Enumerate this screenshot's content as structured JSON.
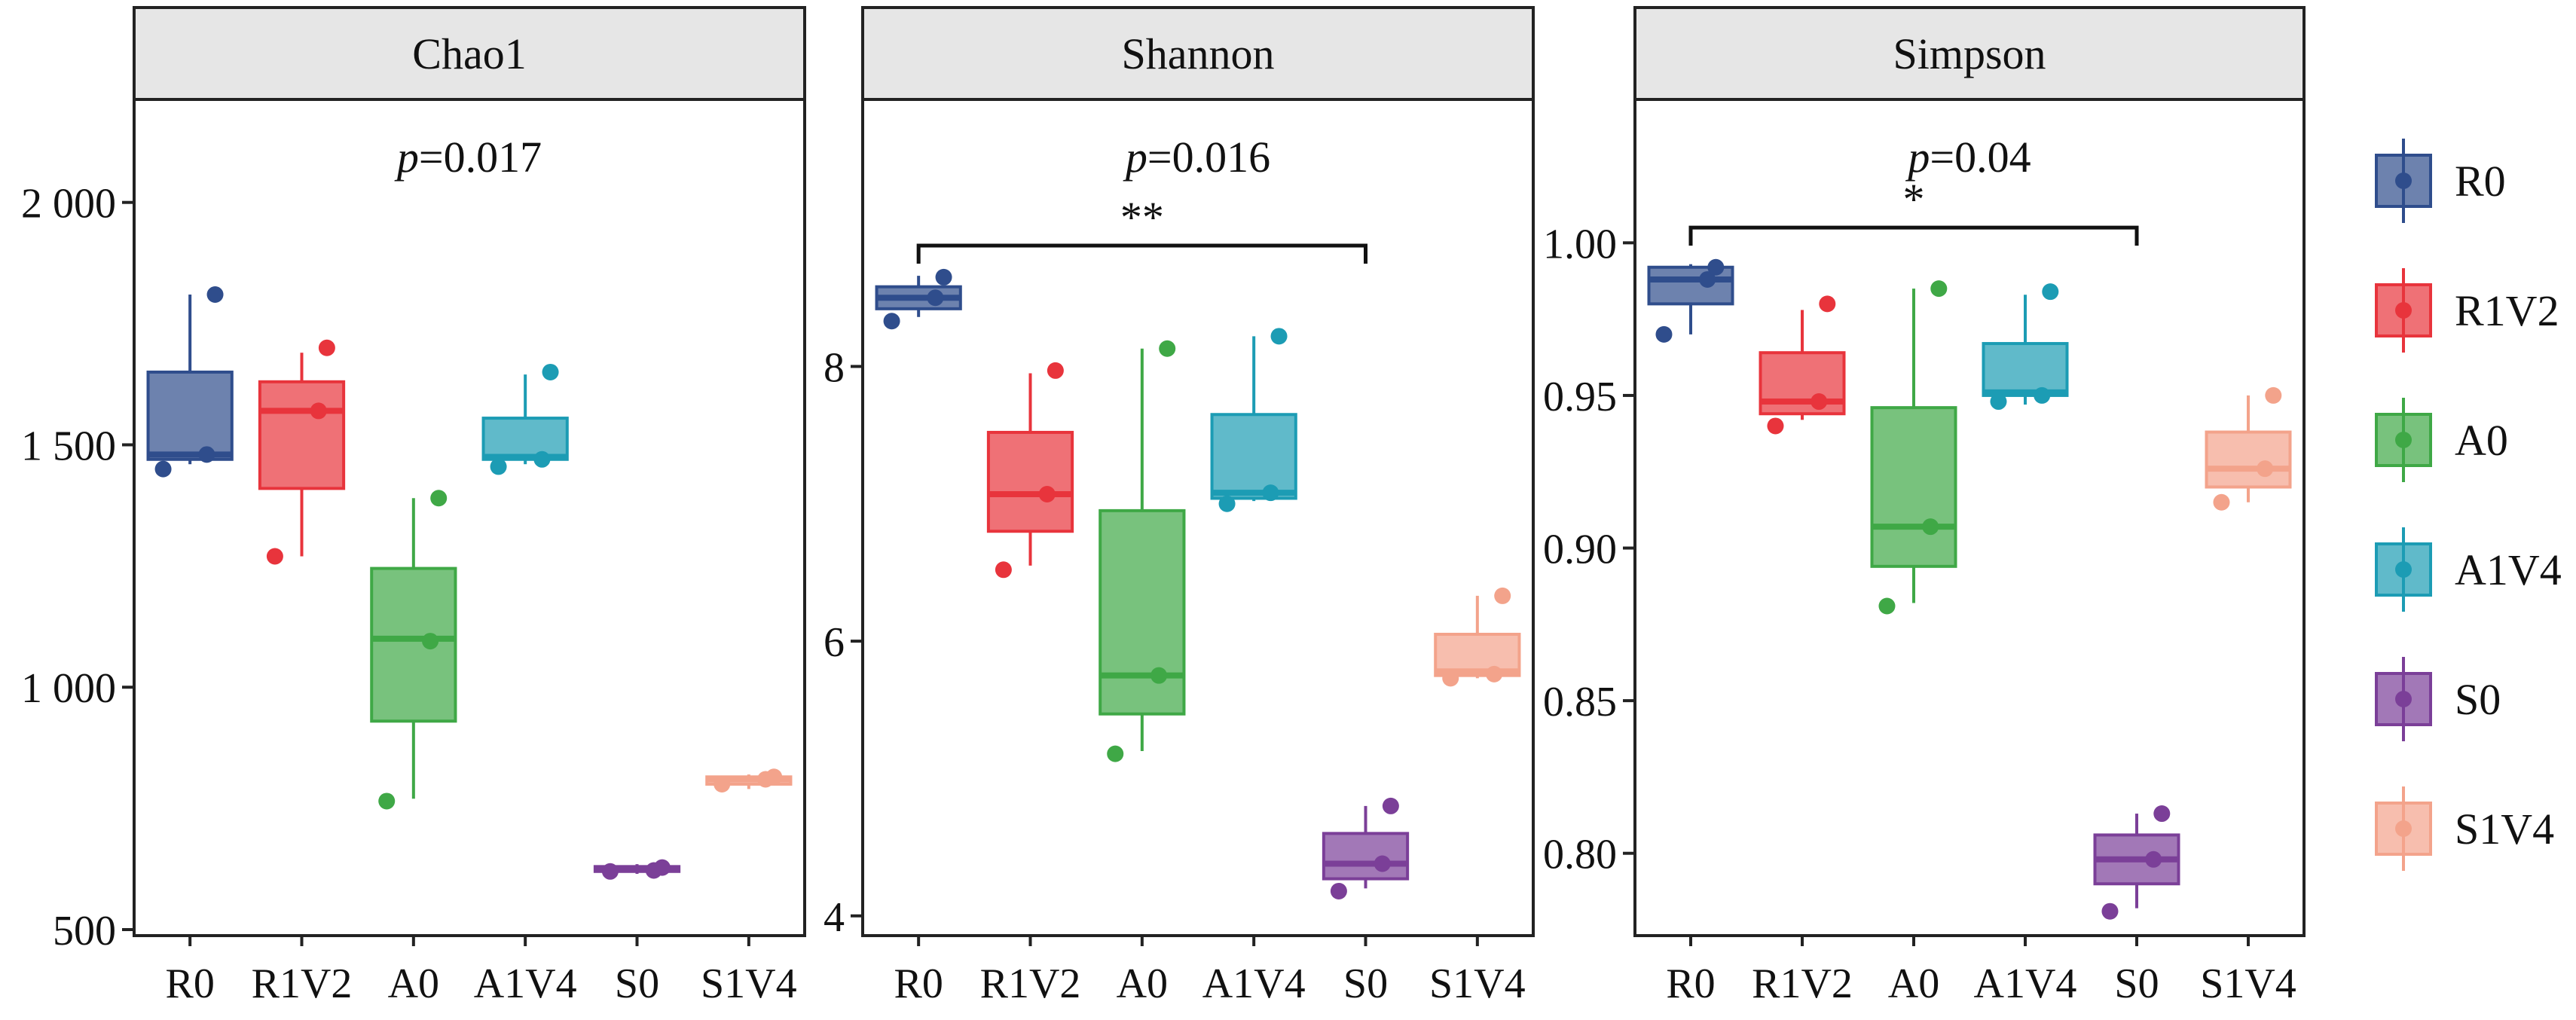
{
  "chart_data": {
    "type": "box",
    "categories": [
      "R0",
      "R1V2",
      "A0",
      "A1V4",
      "S0",
      "S1V4"
    ],
    "colors": {
      "R0": "#2f4d8c",
      "R1V2": "#e8343c",
      "A0": "#3fa846",
      "A1V4": "#1c9cb4",
      "S0": "#7b3f98",
      "S1V4": "#f3a38b"
    },
    "legend": {
      "position": "right",
      "entries": [
        "R0",
        "R1V2",
        "A0",
        "A1V4",
        "S0",
        "S1V4"
      ]
    },
    "panels": [
      {
        "title": "Chao1",
        "p_prefix": "p",
        "p_value": "=0.017",
        "ylim": [
          500,
          2200
        ],
        "yticks": [
          500,
          1000,
          1500,
          2000
        ],
        "ytick_labels": [
          "500",
          "1 000",
          "1 500",
          "2 000"
        ],
        "boxes": [
          {
            "group": "R0",
            "min": 1460,
            "q1": 1470,
            "median": 1480,
            "q3": 1650,
            "max": 1810,
            "points": [
              1450,
              1480,
              1810
            ]
          },
          {
            "group": "R1V2",
            "min": 1270,
            "q1": 1410,
            "median": 1570,
            "q3": 1630,
            "max": 1690,
            "points": [
              1270,
              1570,
              1700
            ]
          },
          {
            "group": "A0",
            "min": 770,
            "q1": 930,
            "median": 1100,
            "q3": 1245,
            "max": 1390,
            "points": [
              765,
              1095,
              1390
            ]
          },
          {
            "group": "A1V4",
            "min": 1460,
            "q1": 1470,
            "median": 1475,
            "q3": 1555,
            "max": 1645,
            "points": [
              1455,
              1470,
              1650
            ]
          },
          {
            "group": "S0",
            "min": 615,
            "q1": 620,
            "median": 625,
            "q3": 630,
            "max": 635,
            "points": [
              620,
              622,
              628
            ]
          },
          {
            "group": "S1V4",
            "min": 790,
            "q1": 800,
            "median": 810,
            "q3": 815,
            "max": 820,
            "points": [
              800,
              810,
              815
            ]
          }
        ],
        "bracket": null
      },
      {
        "title": "Shannon",
        "p_prefix": "p",
        "p_value": "=0.016",
        "ylim": [
          3.9,
          9.9
        ],
        "yticks": [
          4,
          6,
          8
        ],
        "ytick_labels": [
          "4",
          "6",
          "8"
        ],
        "boxes": [
          {
            "group": "R0",
            "min": 8.36,
            "q1": 8.42,
            "median": 8.5,
            "q3": 8.58,
            "max": 8.66,
            "points": [
              8.33,
              8.5,
              8.65
            ]
          },
          {
            "group": "R1V2",
            "min": 6.55,
            "q1": 6.8,
            "median": 7.07,
            "q3": 7.52,
            "max": 7.95,
            "points": [
              6.52,
              7.07,
              7.97
            ]
          },
          {
            "group": "A0",
            "min": 5.2,
            "q1": 5.47,
            "median": 5.75,
            "q3": 6.95,
            "max": 8.13,
            "points": [
              5.18,
              5.75,
              8.13
            ]
          },
          {
            "group": "A1V4",
            "min": 7.02,
            "q1": 7.04,
            "median": 7.08,
            "q3": 7.65,
            "max": 8.22,
            "points": [
              7.0,
              7.08,
              8.22
            ]
          },
          {
            "group": "S0",
            "min": 4.2,
            "q1": 4.27,
            "median": 4.38,
            "q3": 4.6,
            "max": 4.8,
            "points": [
              4.18,
              4.38,
              4.8
            ]
          },
          {
            "group": "S1V4",
            "min": 5.73,
            "q1": 5.75,
            "median": 5.78,
            "q3": 6.05,
            "max": 6.33,
            "points": [
              5.73,
              5.76,
              6.33
            ]
          }
        ],
        "bracket": {
          "from": "R0",
          "to": "S0",
          "y": 8.88,
          "label": "**"
        }
      },
      {
        "title": "Simpson",
        "p_prefix": "p",
        "p_value": "=0.04",
        "ylim": [
          0.775,
          1.045
        ],
        "yticks": [
          0.8,
          0.85,
          0.9,
          0.95,
          1.0
        ],
        "ytick_labels": [
          "0.80",
          "0.85",
          "0.90",
          "0.95",
          "1.00"
        ],
        "boxes": [
          {
            "group": "R0",
            "min": 0.97,
            "q1": 0.98,
            "median": 0.988,
            "q3": 0.992,
            "max": 0.993,
            "points": [
              0.97,
              0.988,
              0.992
            ]
          },
          {
            "group": "R1V2",
            "min": 0.942,
            "q1": 0.944,
            "median": 0.948,
            "q3": 0.964,
            "max": 0.978,
            "points": [
              0.94,
              0.948,
              0.98
            ]
          },
          {
            "group": "A0",
            "min": 0.882,
            "q1": 0.894,
            "median": 0.907,
            "q3": 0.946,
            "max": 0.985,
            "points": [
              0.881,
              0.907,
              0.985
            ]
          },
          {
            "group": "A1V4",
            "min": 0.947,
            "q1": 0.95,
            "median": 0.951,
            "q3": 0.967,
            "max": 0.983,
            "points": [
              0.948,
              0.95,
              0.984
            ]
          },
          {
            "group": "S0",
            "min": 0.782,
            "q1": 0.79,
            "median": 0.798,
            "q3": 0.806,
            "max": 0.813,
            "points": [
              0.781,
              0.798,
              0.813
            ]
          },
          {
            "group": "S1V4",
            "min": 0.915,
            "q1": 0.92,
            "median": 0.926,
            "q3": 0.938,
            "max": 0.95,
            "points": [
              0.915,
              0.926,
              0.95
            ]
          }
        ],
        "bracket": {
          "from": "R0",
          "to": "S0",
          "y": 1.005,
          "label": "*"
        }
      }
    ]
  }
}
